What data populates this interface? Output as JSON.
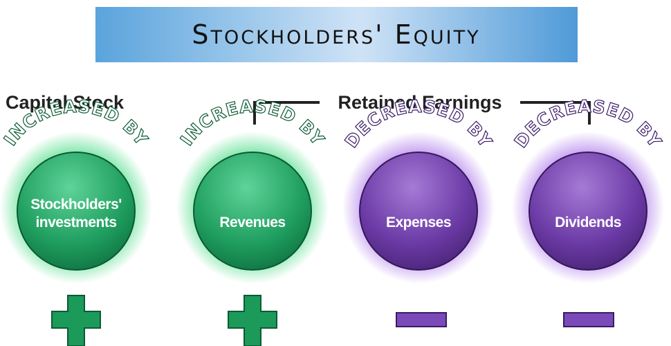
{
  "title": "Stockholders' Equity",
  "groups": [
    {
      "label": "Capital Stock"
    },
    {
      "label": "Retained Earnings"
    }
  ],
  "items": [
    {
      "effect": "INCREASED BY",
      "label": [
        "Stockholders'",
        "investments"
      ]
    },
    {
      "effect": "INCREASED BY",
      "label": [
        "Revenues"
      ]
    },
    {
      "effect": "DECREASED BY",
      "label": [
        "Expenses"
      ]
    },
    {
      "effect": "DECREASED BY",
      "label": [
        "Dividends"
      ]
    }
  ]
}
